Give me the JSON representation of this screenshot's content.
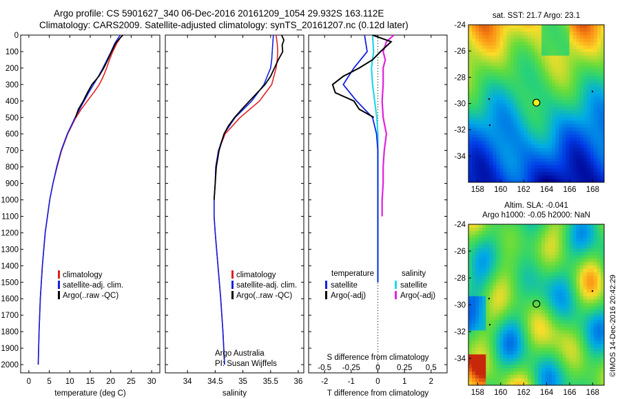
{
  "header": {
    "line1": "Argo profile: CS 5901627_340 06-Dec-2016 20161209_1054 29.932S 163.112E",
    "line2": "Climatology: CARS2009. Satellite-adjusted climatology: synTS_20161207.nc (0.12d later)"
  },
  "colors": {
    "climatology": "#e02020",
    "satellite": "#1020e0",
    "argo": "#000000",
    "salinity_sat": "#20d8e8",
    "salinity_argo": "#e020e0"
  },
  "depth_axis": {
    "ticks": [
      0,
      100,
      200,
      300,
      400,
      500,
      600,
      700,
      800,
      900,
      1000,
      1100,
      1200,
      1300,
      1400,
      1500,
      1600,
      1700,
      1800,
      1900,
      2000
    ],
    "ylim": [
      0,
      2050
    ]
  },
  "chart_data": [
    {
      "type": "line",
      "xlabel": "temperature (deg C)",
      "xlim": [
        -2,
        32
      ],
      "ylim": [
        0,
        2050
      ],
      "xticks": [
        0,
        5,
        10,
        15,
        20,
        25,
        30
      ],
      "legend": [
        "climatology",
        "satellite-adj. clim.",
        "Argo(..raw -QC)"
      ],
      "series": [
        {
          "name": "climatology",
          "depth": [
            0,
            50,
            100,
            150,
            200,
            250,
            300,
            350,
            400,
            450,
            500,
            600,
            700,
            800,
            900,
            1000,
            1200,
            1400,
            1600,
            1800,
            2000
          ],
          "values": [
            22.8,
            21.5,
            20.5,
            19.7,
            19.0,
            18.2,
            17.2,
            15.8,
            14.3,
            12.8,
            11.5,
            9.5,
            8.0,
            6.9,
            5.9,
            5.1,
            4.0,
            3.3,
            2.8,
            2.5,
            2.3
          ]
        },
        {
          "name": "satellite-adj. clim.",
          "depth": [
            0,
            50,
            100,
            150,
            200,
            250,
            300,
            350,
            400,
            450,
            500,
            600,
            700,
            800,
            900,
            1000,
            1200,
            1400,
            1600,
            1800,
            2000
          ],
          "values": [
            22.3,
            21.0,
            20.1,
            19.1,
            18.1,
            17.0,
            15.8,
            14.6,
            13.5,
            12.4,
            11.3,
            9.4,
            7.9,
            6.8,
            5.9,
            5.1,
            4.0,
            3.3,
            2.8,
            2.5,
            2.3
          ]
        },
        {
          "name": "Argo(..raw -QC)",
          "depth": [
            0,
            20,
            50,
            80,
            100,
            150,
            200,
            250,
            300,
            350,
            400,
            450,
            500
          ],
          "values": [
            23.0,
            22.2,
            21.2,
            20.6,
            20.2,
            19.3,
            18.3,
            17.1,
            15.4,
            14.3,
            13.3,
            12.1,
            11.4
          ]
        }
      ]
    },
    {
      "type": "line",
      "xlabel": "salinity",
      "xlim": [
        33.6,
        36.1
      ],
      "ylim": [
        0,
        2050
      ],
      "xticks": [
        34,
        34.5,
        35,
        35.5,
        36
      ],
      "legend": [
        "climatology",
        "satellite-adj. clim.",
        "Argo(..raw -QC)"
      ],
      "annotation": [
        "Argo Australia",
        "PI: Susan Wijffels"
      ],
      "series": [
        {
          "name": "climatology",
          "depth": [
            0,
            50,
            100,
            150,
            200,
            300,
            400,
            500,
            600,
            700,
            800,
            900,
            1000,
            1100,
            1200,
            1400,
            1600,
            1800,
            2000
          ],
          "values": [
            35.6,
            35.62,
            35.63,
            35.62,
            35.6,
            35.52,
            35.3,
            34.95,
            34.68,
            34.56,
            34.51,
            34.5,
            34.48,
            34.48,
            34.5,
            34.55,
            34.6,
            34.64,
            34.67
          ]
        },
        {
          "name": "satellite-adj. clim.",
          "depth": [
            0,
            50,
            100,
            150,
            200,
            300,
            400,
            500,
            600,
            700,
            800,
            900,
            1000,
            1100,
            1200,
            1400,
            1600,
            1800,
            2000
          ],
          "values": [
            35.55,
            35.54,
            35.53,
            35.52,
            35.5,
            35.38,
            35.16,
            34.86,
            34.66,
            34.56,
            34.51,
            34.5,
            34.48,
            34.48,
            34.5,
            34.55,
            34.6,
            34.64,
            34.67
          ]
        },
        {
          "name": "Argo(..raw -QC)",
          "depth": [
            0,
            30,
            60,
            100,
            150,
            200,
            250,
            300,
            350,
            400,
            450,
            500,
            550,
            600,
            700,
            800,
            900,
            1000
          ],
          "values": [
            35.7,
            35.74,
            35.71,
            35.72,
            35.64,
            35.57,
            35.5,
            35.4,
            35.26,
            35.12,
            34.98,
            34.85,
            34.74,
            34.66,
            34.57,
            34.52,
            34.5,
            34.48
          ]
        }
      ]
    },
    {
      "type": "line",
      "xlabel": "T difference from climatology",
      "xlabel_top": "S difference from climatology",
      "xlim": [
        -2.6,
        2.6
      ],
      "ylim": [
        0,
        2050
      ],
      "xticks_T": [
        -2,
        -1,
        0,
        1,
        2
      ],
      "xticks_S": [
        "-0.5",
        "-0.25",
        "0",
        "0.25",
        "0.5"
      ],
      "legend": {
        "temperature": [
          "satellite",
          "Argo(-adj)"
        ],
        "salinity": [
          "satellite",
          "Argo(-adj)"
        ]
      },
      "legend_headers": [
        "temperature",
        "salinity"
      ],
      "series": [
        {
          "name": "satellite",
          "depth": [
            0,
            100,
            200,
            300,
            400,
            500,
            600,
            700,
            800,
            900,
            1000,
            1200,
            1400,
            1500
          ],
          "values": [
            -0.5,
            -0.4,
            -0.9,
            -1.3,
            -0.8,
            -0.2,
            -0.05,
            0,
            0,
            0,
            0,
            0,
            0,
            0
          ]
        },
        {
          "name": "Argo(-adj)",
          "depth": [
            0,
            40,
            100,
            150,
            200,
            250,
            300,
            350,
            400,
            450,
            500
          ],
          "values": [
            -0.2,
            0.5,
            0.1,
            -0.2,
            -0.7,
            -1.3,
            -1.7,
            -1.6,
            -0.9,
            -0.7,
            -0.15
          ]
        },
        {
          "name": "satellite",
          "depth": [
            0,
            100,
            200,
            300,
            400,
            500,
            600,
            700,
            800,
            900,
            1000,
            1200,
            1400,
            1500
          ],
          "values": [
            -0.05,
            -0.04,
            -0.06,
            -0.05,
            -0.03,
            -0.01,
            0,
            0,
            0,
            0,
            0,
            0,
            0,
            0
          ]
        },
        {
          "name": "Argo(-adj)",
          "depth": [
            0,
            40,
            100,
            150,
            200,
            300,
            400,
            500,
            600,
            700,
            800,
            900,
            1000,
            1100
          ],
          "values": [
            0.15,
            0.08,
            0.05,
            0.07,
            0.05,
            0.05,
            0.04,
            0.05,
            0.08,
            0.06,
            0.05,
            0.05,
            0.04,
            0.04
          ]
        }
      ]
    },
    {
      "type": "heatmap",
      "title": "sat. SST: 21.7 Argo: 23.1",
      "xticks": [
        158,
        160,
        162,
        164,
        166,
        168
      ],
      "yticks": [
        -24,
        -26,
        -28,
        -30,
        -32,
        -34
      ],
      "xlim": [
        157.2,
        169
      ],
      "ylim": [
        -36,
        -24
      ],
      "marker": {
        "lon": 163.112,
        "lat": -29.932
      }
    },
    {
      "type": "heatmap",
      "title": "Altim. SLA: -0.041",
      "subtitle": "Argo h1000: -0.05 h2000: NaN",
      "xticks": [
        158,
        160,
        162,
        164,
        166,
        168
      ],
      "yticks": [
        -24,
        -26,
        -28,
        -30,
        -32,
        -34
      ],
      "xlim": [
        157.2,
        169
      ],
      "ylim": [
        -36,
        -24
      ],
      "marker": {
        "lon": 163.112,
        "lat": -29.932
      }
    }
  ],
  "credit": "©IMOS 14-Dec-2016 20:42:29"
}
